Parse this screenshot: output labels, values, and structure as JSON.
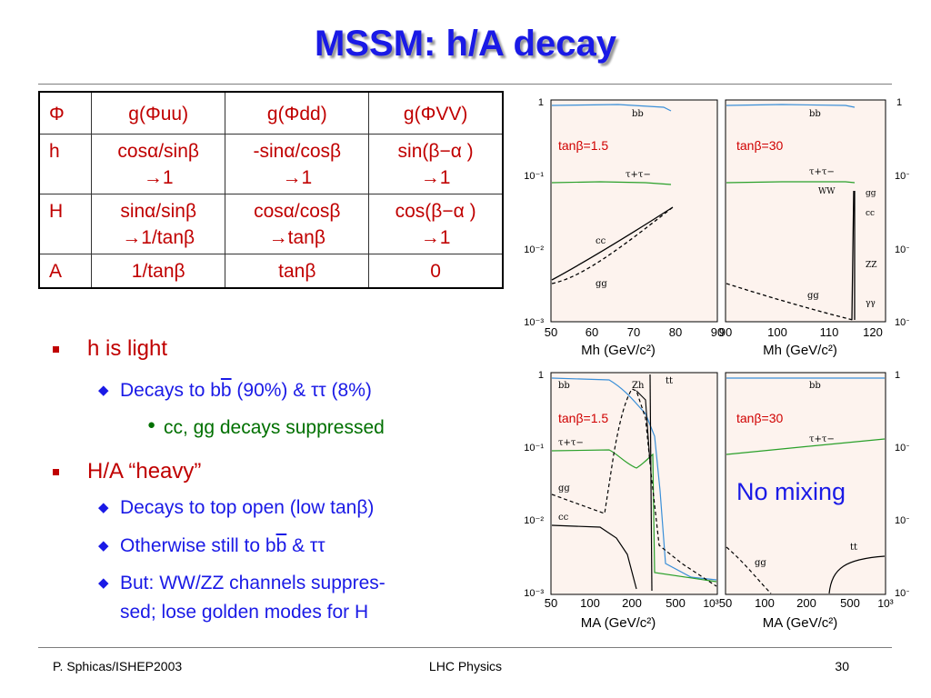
{
  "title": "MSSM: h/A decay",
  "table": {
    "header": [
      "Φ",
      "g(Φuu)",
      "g(Φdd)",
      "g(ΦVV)"
    ],
    "rows": [
      {
        "label": "h",
        "cells": [
          [
            "cosα/sinβ",
            "→1"
          ],
          [
            "-sinα/cosβ",
            "→1"
          ],
          [
            "sin(β−α )",
            "→1"
          ]
        ]
      },
      {
        "label": "H",
        "cells": [
          [
            "sinα/sinβ",
            "→1/tanβ"
          ],
          [
            "cosα/cosβ",
            "→tanβ"
          ],
          [
            "cos(β−α )",
            "→1"
          ]
        ]
      },
      {
        "label": "A",
        "cells": [
          [
            "1/tanβ"
          ],
          [
            "tanβ"
          ],
          [
            "0"
          ]
        ]
      }
    ]
  },
  "bullets": {
    "b1": "h is light",
    "b1_sub1_pre": "Decays to b",
    "b1_sub1_bar": "b",
    "b1_sub1_post": " (90%) & ττ (8%)",
    "b1_subsub1": "cc, gg decays suppressed",
    "b2": "H/A “heavy”",
    "b2_sub1": "Decays to top open (low tanβ)",
    "b2_sub2_pre": "Otherwise still to b",
    "b2_sub2_bar": "b",
    "b2_sub2_post": " & ττ",
    "b2_sub3_line1": "But:  WW/ZZ channels suppres-",
    "b2_sub3_line2": "sed; lose golden modes for H"
  },
  "plots": {
    "panels": [
      {
        "tanb_label": "tanβ=1.5",
        "x_ticks": [
          "50",
          "60",
          "70",
          "80",
          "90"
        ],
        "x_label": "Mh (GeV/c²)",
        "curve_labels": [
          "bb",
          "τ+τ−",
          "cc",
          "gg"
        ]
      },
      {
        "tanb_label": "tanβ=30",
        "x_ticks": [
          "90",
          "100",
          "110",
          "120"
        ],
        "x_label": "Mh (GeV/c²)",
        "curve_labels": [
          "bb",
          "τ+τ−",
          "WW",
          "gg",
          "cc",
          "ZZ",
          "gg",
          "γγ"
        ]
      },
      {
        "tanb_label": "tanβ=1.5",
        "x_ticks": [
          "50",
          "100",
          "200",
          "500",
          "10³"
        ],
        "x_label": "MA (GeV/c²)",
        "curve_labels": [
          "bb",
          "Zh",
          "tt",
          "τ+τ−",
          "gg",
          "cc"
        ]
      },
      {
        "tanb_label": "tanβ=30",
        "x_ticks": [
          "50",
          "100",
          "200",
          "500",
          "10³"
        ],
        "x_label": "MA (GeV/c²)",
        "curve_labels": [
          "bb",
          "τ+τ−",
          "gg",
          "tt"
        ]
      }
    ],
    "y_ticks": [
      "1",
      "10⁻¹",
      "10⁻²",
      "10⁻³"
    ],
    "annotation": "No mixing"
  },
  "footer": {
    "left": "P. Sphicas/ISHEP2003",
    "center": "LHC Physics",
    "right": "30"
  },
  "colors": {
    "title": "#1a1ae6",
    "table_text": "#c00000",
    "green_text": "#007000",
    "panel_bg": "#fdf3ee"
  }
}
